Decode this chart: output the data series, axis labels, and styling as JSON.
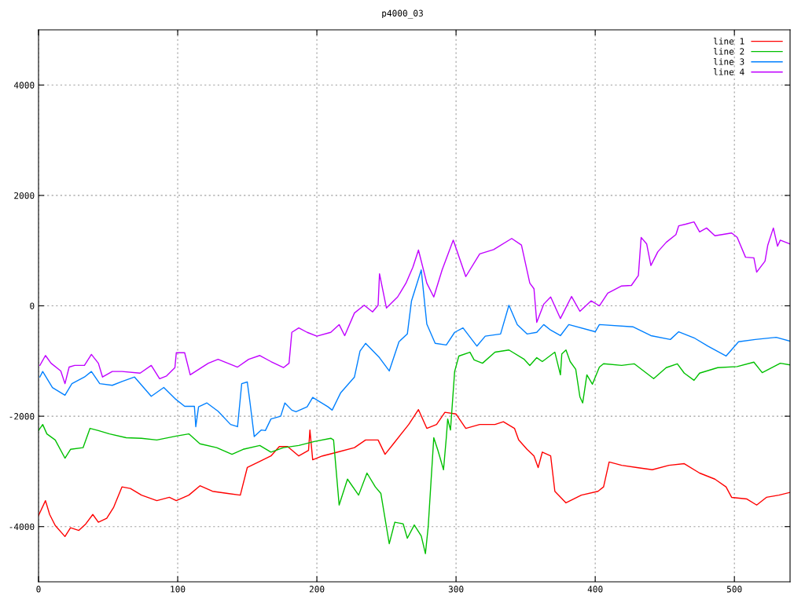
{
  "chart_data": {
    "type": "line",
    "title": "p4000_03",
    "xlim": [
      0,
      540
    ],
    "xticks": [
      0,
      100,
      200,
      300,
      400,
      500
    ],
    "ylim": [
      -5000,
      5000
    ],
    "yticks": [
      -4000,
      -2000,
      0,
      2000,
      4000
    ],
    "grid": true,
    "legend": "top right",
    "line_style": "solid",
    "marker": "none",
    "series": [
      {
        "name": "line 1",
        "color": "#ff0000",
        "x": [
          0,
          5,
          8,
          12,
          19,
          23,
          29,
          34,
          39,
          43,
          49,
          54,
          60,
          66,
          74,
          85,
          94,
          99,
          108,
          116,
          125,
          136,
          145,
          150,
          159,
          167,
          173,
          179,
          187,
          194,
          195,
          197,
          204,
          215,
          227,
          235,
          244,
          249,
          255,
          266,
          273,
          279,
          286,
          292,
          300,
          307,
          317,
          328,
          334,
          342,
          345,
          351,
          356,
          359,
          362,
          368,
          371,
          379,
          390,
          402,
          406,
          410,
          419,
          430,
          441,
          453,
          464,
          475,
          486,
          494,
          498,
          509,
          516,
          523,
          532,
          540
        ],
        "values": [
          -3800,
          -3530,
          -3780,
          -3980,
          -4180,
          -4020,
          -4070,
          -3950,
          -3780,
          -3920,
          -3850,
          -3650,
          -3280,
          -3310,
          -3430,
          -3530,
          -3470,
          -3530,
          -3430,
          -3260,
          -3360,
          -3400,
          -3430,
          -2930,
          -2820,
          -2720,
          -2550,
          -2550,
          -2720,
          -2620,
          -2250,
          -2790,
          -2720,
          -2650,
          -2570,
          -2430,
          -2430,
          -2690,
          -2500,
          -2150,
          -1880,
          -2220,
          -2150,
          -1930,
          -1960,
          -2220,
          -2150,
          -2150,
          -2100,
          -2220,
          -2430,
          -2600,
          -2720,
          -2930,
          -2650,
          -2720,
          -3360,
          -3570,
          -3430,
          -3360,
          -3280,
          -2830,
          -2890,
          -2930,
          -2970,
          -2890,
          -2860,
          -3030,
          -3140,
          -3280,
          -3470,
          -3500,
          -3610,
          -3470,
          -3430,
          -3380
        ]
      },
      {
        "name": "line 2",
        "color": "#00c000",
        "x": [
          0,
          3,
          6,
          12,
          19,
          23,
          32,
          37,
          43,
          51,
          63,
          74,
          85,
          99,
          108,
          116,
          128,
          139,
          147,
          159,
          167,
          176,
          187,
          198,
          210,
          212,
          216,
          222,
          230,
          236,
          242,
          246,
          252,
          256,
          262,
          265,
          270,
          275,
          278,
          280,
          282,
          284,
          287,
          291,
          293,
          294,
          296,
          299,
          302,
          310,
          313,
          319,
          328,
          338,
          349,
          353,
          358,
          362,
          371,
          375,
          376,
          379,
          382,
          386,
          389,
          391,
          394,
          398,
          403,
          406,
          419,
          428,
          442,
          451,
          459,
          464,
          471,
          475,
          488,
          502,
          514,
          520,
          533,
          540
        ],
        "values": [
          -2260,
          -2150,
          -2320,
          -2430,
          -2760,
          -2600,
          -2570,
          -2220,
          -2260,
          -2320,
          -2390,
          -2400,
          -2430,
          -2360,
          -2320,
          -2500,
          -2570,
          -2690,
          -2600,
          -2530,
          -2650,
          -2570,
          -2530,
          -2460,
          -2400,
          -2430,
          -3610,
          -3140,
          -3430,
          -3030,
          -3280,
          -3400,
          -4310,
          -3920,
          -3950,
          -4210,
          -3970,
          -4170,
          -4490,
          -4000,
          -3190,
          -2390,
          -2620,
          -2970,
          -2390,
          -2050,
          -2250,
          -1190,
          -910,
          -840,
          -980,
          -1040,
          -840,
          -800,
          -970,
          -1080,
          -940,
          -1010,
          -840,
          -1250,
          -870,
          -800,
          -1010,
          -1150,
          -1650,
          -1760,
          -1250,
          -1420,
          -1110,
          -1050,
          -1080,
          -1050,
          -1320,
          -1120,
          -1050,
          -1220,
          -1350,
          -1220,
          -1120,
          -1100,
          -1020,
          -1210,
          -1040,
          -1070
        ]
      },
      {
        "name": "line 3",
        "color": "#0080ff",
        "x": [
          1,
          3,
          10,
          19,
          24,
          33,
          38,
          44,
          53,
          60,
          69,
          81,
          90,
          98,
          105,
          112,
          113,
          115,
          121,
          129,
          138,
          143,
          146,
          150,
          152,
          155,
          160,
          163,
          167,
          174,
          177,
          182,
          185,
          193,
          197,
          208,
          211,
          217,
          227,
          231,
          235,
          245,
          252,
          259,
          265,
          268,
          275,
          279,
          285,
          293,
          299,
          305,
          315,
          321,
          332,
          338,
          344,
          351,
          358,
          363,
          368,
          375,
          381,
          400,
          403,
          427,
          440,
          454,
          460,
          471,
          481,
          494,
          503,
          515,
          530,
          540
        ],
        "values": [
          -1290,
          -1190,
          -1480,
          -1620,
          -1410,
          -1290,
          -1190,
          -1410,
          -1440,
          -1370,
          -1290,
          -1640,
          -1480,
          -1680,
          -1820,
          -1820,
          -2190,
          -1830,
          -1760,
          -1910,
          -2150,
          -2190,
          -1410,
          -1380,
          -1760,
          -2370,
          -2250,
          -2260,
          -2050,
          -2000,
          -1760,
          -1890,
          -1920,
          -1830,
          -1660,
          -1830,
          -1890,
          -1580,
          -1290,
          -820,
          -680,
          -940,
          -1180,
          -650,
          -510,
          90,
          650,
          -330,
          -680,
          -710,
          -480,
          -400,
          -730,
          -550,
          -510,
          10,
          -340,
          -510,
          -480,
          -340,
          -440,
          -540,
          -340,
          -470,
          -340,
          -380,
          -540,
          -610,
          -470,
          -580,
          -730,
          -910,
          -650,
          -610,
          -570,
          -640
        ]
      },
      {
        "name": "line 4",
        "color": "#c000ff",
        "x": [
          1,
          5,
          9,
          16,
          19,
          22,
          26,
          33,
          38,
          43,
          46,
          53,
          60,
          73,
          81,
          87,
          92,
          98,
          99,
          105,
          109,
          122,
          129,
          143,
          151,
          159,
          167,
          176,
          180,
          182,
          187,
          193,
          200,
          210,
          216,
          220,
          227,
          234,
          240,
          244,
          245,
          250,
          258,
          264,
          269,
          273,
          279,
          284,
          290,
          298,
          307,
          317,
          327,
          340,
          347,
          353,
          356,
          358,
          363,
          368,
          375,
          383,
          389,
          397,
          403,
          409,
          419,
          426,
          431,
          433,
          437,
          440,
          445,
          451,
          458,
          460,
          465,
          471,
          475,
          480,
          486,
          498,
          502,
          508,
          514,
          516,
          522,
          524,
          528,
          531,
          533,
          540
        ],
        "values": [
          -1080,
          -900,
          -1040,
          -1180,
          -1410,
          -1110,
          -1080,
          -1080,
          -880,
          -1040,
          -1290,
          -1190,
          -1190,
          -1220,
          -1080,
          -1320,
          -1270,
          -1120,
          -850,
          -850,
          -1250,
          -1040,
          -970,
          -1110,
          -970,
          -900,
          -1010,
          -1120,
          -1040,
          -480,
          -400,
          -480,
          -550,
          -480,
          -340,
          -540,
          -130,
          10,
          -110,
          10,
          580,
          -40,
          160,
          410,
          700,
          1010,
          410,
          160,
          650,
          1190,
          530,
          940,
          1020,
          1220,
          1100,
          410,
          310,
          -300,
          30,
          160,
          -230,
          170,
          -100,
          90,
          0,
          230,
          360,
          370,
          550,
          1240,
          1120,
          730,
          980,
          1150,
          1290,
          1450,
          1480,
          1520,
          1340,
          1410,
          1270,
          1320,
          1240,
          880,
          870,
          610,
          810,
          1100,
          1410,
          1080,
          1190,
          1120
        ]
      }
    ]
  }
}
